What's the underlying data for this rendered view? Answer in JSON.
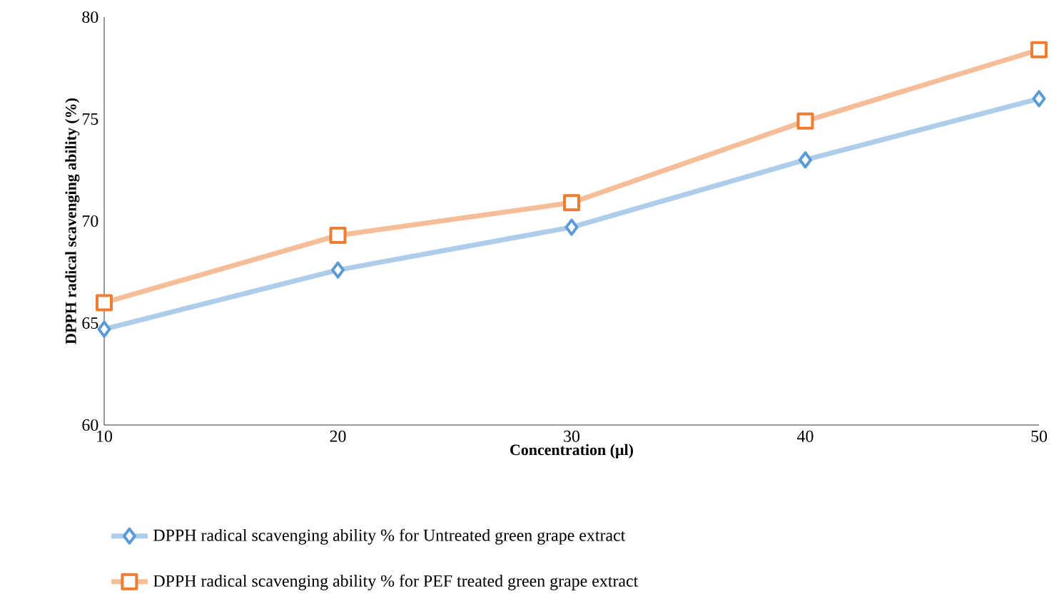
{
  "chart_data": {
    "type": "line",
    "xlabel": "Concentration (µl)",
    "ylabel": "DPPH radical scavenging ability (%)",
    "x": [
      10,
      20,
      30,
      40,
      50
    ],
    "xlim": [
      10,
      50
    ],
    "xticks": [
      10,
      20,
      30,
      40,
      50
    ],
    "ylim": [
      60,
      80
    ],
    "yticks": [
      60,
      65,
      70,
      75,
      80
    ],
    "grid": false,
    "legend": "bottom",
    "series": [
      {
        "name": "DPPH radical scavenging ability % for Untreated green grape extract",
        "color": "#5b9bd5",
        "marker": "diamond",
        "values": [
          64.7,
          67.6,
          69.7,
          73.0,
          76.0
        ]
      },
      {
        "name": "DPPH radical scavenging ability % for PEF  treated green grape extract",
        "color": "#ed7d31",
        "marker": "square",
        "values": [
          66.0,
          69.3,
          70.9,
          74.9,
          78.4
        ]
      }
    ]
  }
}
